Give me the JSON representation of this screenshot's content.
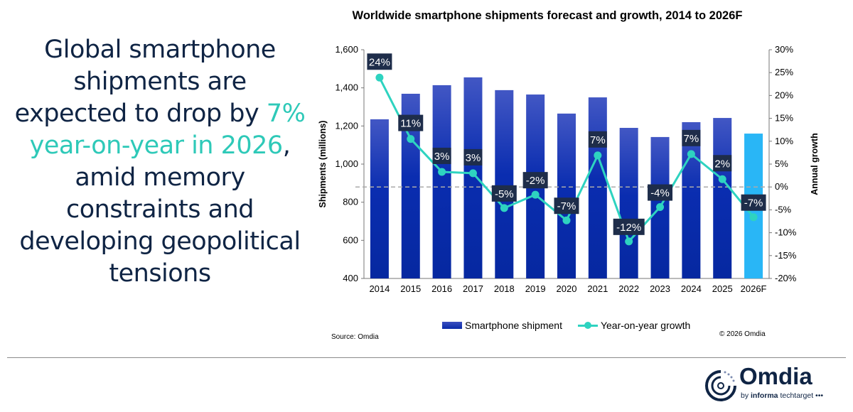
{
  "headline": {
    "part1": "Global smartphone shipments are expected to drop by ",
    "highlight": "7% year-on-year in 2026",
    "part2": ", amid memory constraints and developing geopolitical tensions"
  },
  "chart_data": {
    "type": "bar",
    "title": "Worldwide smartphone shipments forecast and growth, 2014 to 2026F",
    "categories": [
      "2014",
      "2015",
      "2016",
      "2017",
      "2018",
      "2019",
      "2020",
      "2021",
      "2022",
      "2023",
      "2024",
      "2025",
      "2026F"
    ],
    "ylabel": "Shipments (millions)",
    "y2label": "Annual growth",
    "ylim": [
      400,
      1600
    ],
    "yticks": [
      "400",
      "600",
      "800",
      "1,000",
      "1,200",
      "1,400",
      "1,600"
    ],
    "y2lim": [
      -20,
      30
    ],
    "y2ticks": [
      "-20%",
      "-15%",
      "-10%",
      "-5%",
      "0%",
      "5%",
      "10%",
      "15%",
      "20%",
      "25%",
      "30%"
    ],
    "series": [
      {
        "name": "Smartphone shipment",
        "type": "bar",
        "values": [
          1235,
          1369,
          1414,
          1455,
          1388,
          1365,
          1265,
          1350,
          1190,
          1142,
          1220,
          1242,
          1160
        ],
        "color": "#1a33b0",
        "forecast_color": "#29b6f6"
      },
      {
        "name": "Year-on-year growth",
        "type": "line",
        "axis": "right",
        "values": [
          23.9,
          10.5,
          3.3,
          3.0,
          -4.6,
          -1.7,
          -7.3,
          6.9,
          -11.9,
          -4.4,
          7.2,
          1.7,
          -6.6
        ],
        "labels": [
          "24%",
          "11%",
          "3%",
          "3%",
          "-5%",
          "-2%",
          "-7%",
          "7%",
          "-12%",
          "-4%",
          "7%",
          "2%",
          "-7%"
        ],
        "color": "#2ed3c0"
      }
    ],
    "reference_line": {
      "axis": "right",
      "value": 0,
      "style": "dashed"
    },
    "grid": false,
    "legend": "bottom"
  },
  "source": "Source: Omdia",
  "copyright": "© 2026 Omdia",
  "logo": {
    "word": "Omdia",
    "sub_by": "by ",
    "sub_bold": "informa",
    "sub_rest": " techtarget •••"
  },
  "colors": {
    "navy": "#0f2444",
    "accent": "#2ec9b8",
    "label_bg": "#1e2d4a"
  }
}
